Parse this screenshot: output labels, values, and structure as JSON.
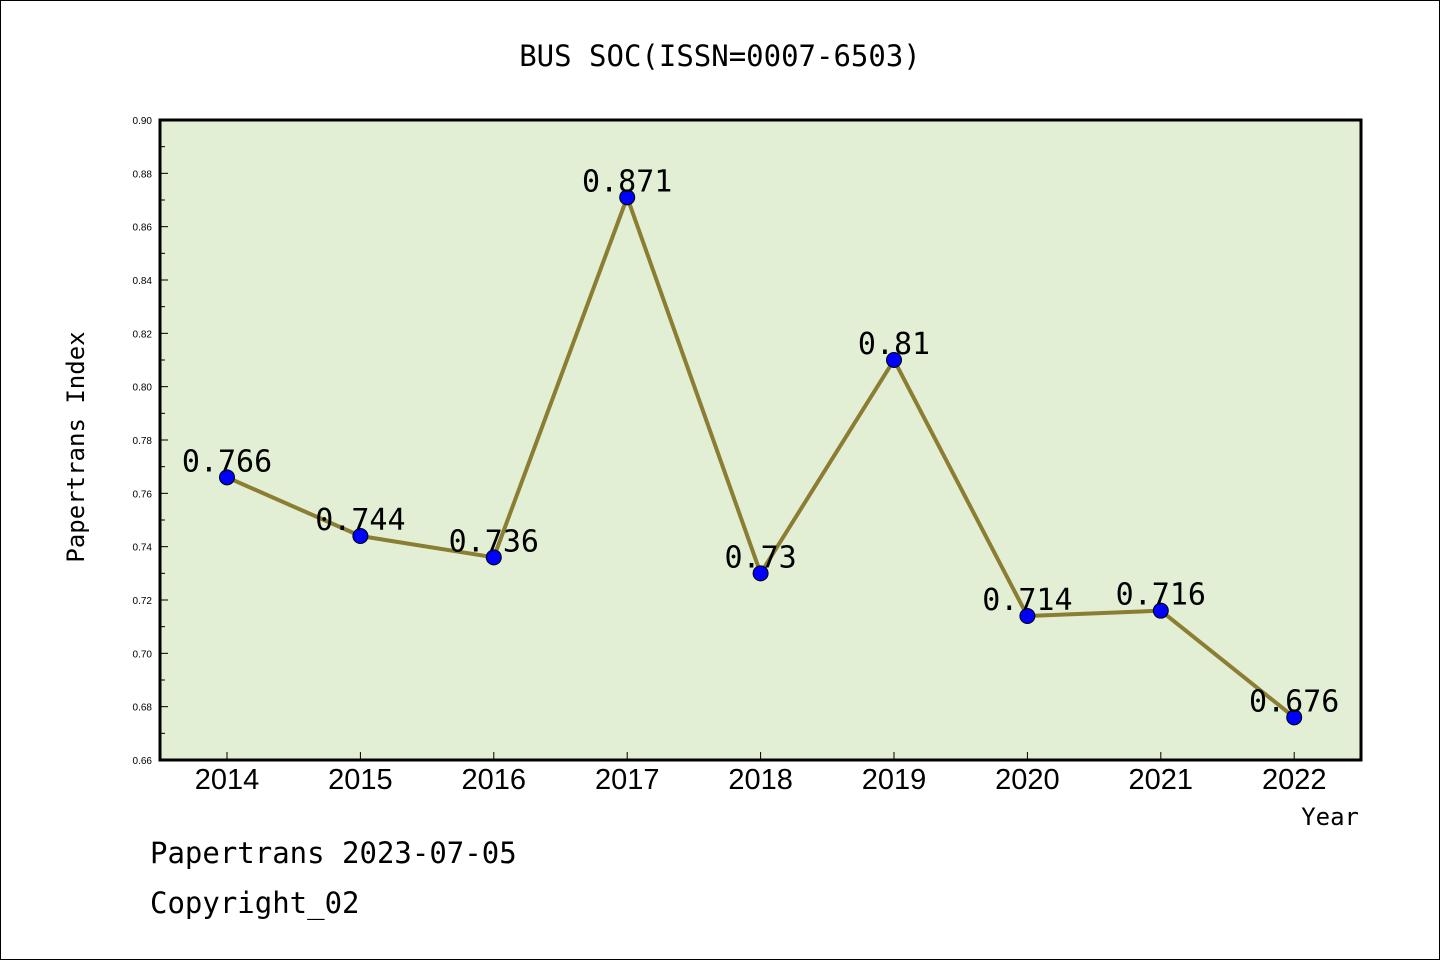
{
  "chart_data": {
    "type": "line",
    "title": "BUS SOC(ISSN=0007-6503)",
    "xlabel": "Year",
    "ylabel": "Papertrans Index",
    "categories": [
      "2014",
      "2015",
      "2016",
      "2017",
      "2018",
      "2019",
      "2020",
      "2021",
      "2022"
    ],
    "values": [
      0.766,
      0.744,
      0.736,
      0.871,
      0.73,
      0.81,
      0.714,
      0.716,
      0.676
    ],
    "data_labels": [
      "0.766",
      "0.744",
      "0.736",
      "0.871",
      "0.73",
      "0.81",
      "0.714",
      "0.716",
      "0.676"
    ],
    "ylim": [
      0.66,
      0.9
    ],
    "yticks": [
      "0.66",
      "0.68",
      "0.70",
      "0.72",
      "0.74",
      "0.76",
      "0.78",
      "0.80",
      "0.82",
      "0.84",
      "0.86",
      "0.88",
      "0.90"
    ],
    "grid": false,
    "colors": {
      "plot_background": "#e2efd5",
      "line": "#8b7d32",
      "marker": "#0000ff"
    }
  },
  "footer": {
    "source": "Papertrans 2023-07-05",
    "copyright": "Copyright_02"
  }
}
